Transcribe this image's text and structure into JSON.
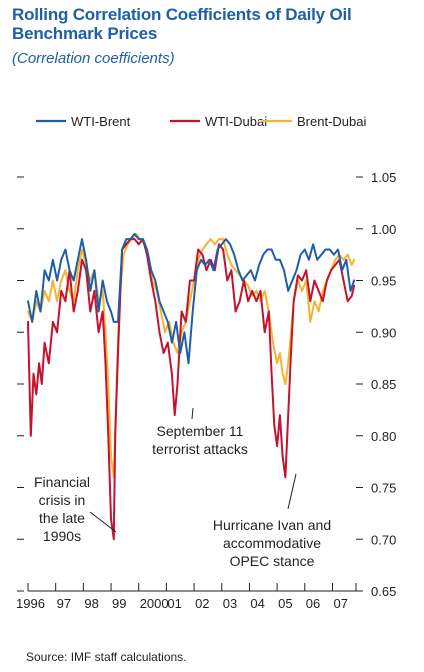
{
  "title": "Rolling Correlation Coefficients of Daily Oil Benchmark Prices",
  "subtitle": "(Correlation coefficients)",
  "source": "Source: IMF staff calculations.",
  "colors": {
    "wti_brent": "#1f5fa8",
    "wti_dubai": "#c4122f",
    "brent_dubai": "#f5b335",
    "title": "#1f5fa8"
  },
  "chart_data": {
    "type": "line",
    "x_tick_labels": [
      "1996",
      "97",
      "98",
      "99",
      "2000",
      "01",
      "02",
      "03",
      "04",
      "05",
      "06",
      "07"
    ],
    "x_ticks": [
      1996,
      1997,
      1998,
      1999,
      2000,
      2001,
      2002,
      2003,
      2004,
      2005,
      2006,
      2007
    ],
    "xlim": [
      1996,
      2007.85
    ],
    "ylim": [
      0.65,
      1.05
    ],
    "y_ticks": [
      0.65,
      0.7,
      0.75,
      0.8,
      0.85,
      0.9,
      0.95,
      1.0,
      1.05
    ],
    "y_tick_labels": [
      "0.65",
      "0.70",
      "0.75",
      "0.80",
      "0.85",
      "0.90",
      "0.95",
      "1.00",
      "1.05"
    ],
    "y_axis_side": "right",
    "legend_position": "top",
    "series": [
      {
        "name": "WTI-Brent",
        "color": "#1f5fa8",
        "x": [
          1996.0,
          1996.15,
          1996.3,
          1996.45,
          1996.6,
          1996.75,
          1996.9,
          1997.05,
          1997.2,
          1997.35,
          1997.5,
          1997.65,
          1997.8,
          1997.95,
          1998.1,
          1998.25,
          1998.4,
          1998.55,
          1998.7,
          1998.85,
          1999.0,
          1999.1,
          1999.25,
          1999.4,
          1999.55,
          1999.7,
          1999.85,
          2000.0,
          2000.15,
          2000.3,
          2000.45,
          2000.6,
          2000.75,
          2000.9,
          2001.05,
          2001.2,
          2001.35,
          2001.5,
          2001.65,
          2001.8,
          2001.95,
          2002.1,
          2002.25,
          2002.4,
          2002.55,
          2002.7,
          2002.85,
          2003.0,
          2003.15,
          2003.3,
          2003.45,
          2003.6,
          2003.75,
          2003.9,
          2004.05,
          2004.2,
          2004.35,
          2004.5,
          2004.65,
          2004.8,
          2004.95,
          2005.1,
          2005.25,
          2005.4,
          2005.55,
          2005.7,
          2005.85,
          2006.0,
          2006.15,
          2006.3,
          2006.45,
          2006.6,
          2006.75,
          2006.9,
          2007.05,
          2007.2,
          2007.35,
          2007.5,
          2007.65,
          2007.78
        ],
        "y": [
          0.93,
          0.91,
          0.94,
          0.92,
          0.96,
          0.95,
          0.97,
          0.95,
          0.97,
          0.98,
          0.96,
          0.95,
          0.97,
          0.99,
          0.97,
          0.94,
          0.96,
          0.92,
          0.95,
          0.93,
          0.92,
          0.91,
          0.91,
          0.98,
          0.99,
          0.99,
          0.995,
          0.99,
          0.99,
          0.98,
          0.96,
          0.95,
          0.93,
          0.92,
          0.91,
          0.89,
          0.91,
          0.88,
          0.9,
          0.87,
          0.92,
          0.96,
          0.97,
          0.965,
          0.97,
          0.96,
          0.98,
          0.985,
          0.99,
          0.985,
          0.975,
          0.96,
          0.95,
          0.955,
          0.96,
          0.95,
          0.965,
          0.975,
          0.98,
          0.98,
          0.97,
          0.97,
          0.96,
          0.94,
          0.95,
          0.96,
          0.975,
          0.98,
          0.97,
          0.985,
          0.97,
          0.975,
          0.98,
          0.98,
          0.975,
          0.98,
          0.96,
          0.97,
          0.94,
          0.95
        ]
      },
      {
        "name": "WTI-Dubai",
        "color": "#c4122f",
        "x": [
          1996.0,
          1996.1,
          1996.2,
          1996.3,
          1996.4,
          1996.5,
          1996.6,
          1996.75,
          1996.9,
          1997.05,
          1997.2,
          1997.35,
          1997.5,
          1997.65,
          1997.8,
          1997.95,
          1998.1,
          1998.25,
          1998.4,
          1998.55,
          1998.7,
          1998.8,
          1998.9,
          1999.0,
          1999.1,
          1999.15,
          1999.25,
          1999.4,
          1999.55,
          1999.7,
          1999.85,
          2000.0,
          2000.15,
          2000.3,
          2000.45,
          2000.6,
          2000.75,
          2000.9,
          2001.05,
          2001.2,
          2001.3,
          2001.4,
          2001.55,
          2001.7,
          2001.85,
          2002.0,
          2002.15,
          2002.3,
          2002.45,
          2002.6,
          2002.75,
          2002.9,
          2003.05,
          2003.2,
          2003.35,
          2003.5,
          2003.65,
          2003.8,
          2003.95,
          2004.1,
          2004.25,
          2004.4,
          2004.55,
          2004.7,
          2004.8,
          2004.9,
          2005.0,
          2005.1,
          2005.2,
          2005.3,
          2005.4,
          2005.5,
          2005.6,
          2005.75,
          2005.9,
          2006.05,
          2006.2,
          2006.35,
          2006.5,
          2006.65,
          2006.8,
          2006.95,
          2007.1,
          2007.25,
          2007.4,
          2007.55,
          2007.7,
          2007.78
        ],
        "y": [
          0.91,
          0.8,
          0.86,
          0.84,
          0.87,
          0.85,
          0.89,
          0.87,
          0.91,
          0.9,
          0.94,
          0.93,
          0.96,
          0.92,
          0.94,
          0.97,
          0.96,
          0.92,
          0.94,
          0.9,
          0.92,
          0.87,
          0.8,
          0.72,
          0.7,
          0.8,
          0.88,
          0.98,
          0.985,
          0.99,
          0.99,
          0.985,
          0.99,
          0.975,
          0.95,
          0.93,
          0.9,
          0.88,
          0.89,
          0.86,
          0.82,
          0.85,
          0.92,
          0.91,
          0.95,
          0.95,
          0.98,
          0.975,
          0.96,
          0.97,
          0.96,
          0.985,
          0.98,
          0.95,
          0.96,
          0.92,
          0.93,
          0.95,
          0.93,
          0.94,
          0.93,
          0.94,
          0.9,
          0.92,
          0.86,
          0.81,
          0.79,
          0.82,
          0.78,
          0.76,
          0.82,
          0.88,
          0.93,
          0.955,
          0.95,
          0.96,
          0.93,
          0.95,
          0.94,
          0.93,
          0.95,
          0.96,
          0.965,
          0.97,
          0.95,
          0.93,
          0.935,
          0.945
        ]
      },
      {
        "name": "Brent-Dubai",
        "color": "#f5b335",
        "x": [
          1996.0,
          1996.15,
          1996.3,
          1996.45,
          1996.6,
          1996.75,
          1996.9,
          1997.05,
          1997.2,
          1997.35,
          1997.5,
          1997.65,
          1997.8,
          1997.95,
          1998.1,
          1998.25,
          1998.4,
          1998.55,
          1998.7,
          1998.8,
          1998.9,
          1999.0,
          1999.1,
          1999.2,
          1999.3,
          1999.45,
          1999.6,
          1999.75,
          1999.9,
          2000.05,
          2000.2,
          2000.35,
          2000.5,
          2000.65,
          2000.8,
          2000.95,
          2001.1,
          2001.25,
          2001.4,
          2001.55,
          2001.7,
          2001.85,
          2002.0,
          2002.15,
          2002.3,
          2002.45,
          2002.6,
          2002.75,
          2002.9,
          2003.05,
          2003.2,
          2003.35,
          2003.5,
          2003.65,
          2003.8,
          2003.95,
          2004.1,
          2004.25,
          2004.4,
          2004.55,
          2004.7,
          2004.85,
          2005.0,
          2005.1,
          2005.2,
          2005.3,
          2005.4,
          2005.5,
          2005.6,
          2005.75,
          2005.9,
          2006.05,
          2006.2,
          2006.35,
          2006.5,
          2006.65,
          2006.8,
          2006.95,
          2007.1,
          2007.25,
          2007.4,
          2007.55,
          2007.7,
          2007.78
        ],
        "y": [
          0.92,
          0.91,
          0.93,
          0.92,
          0.94,
          0.93,
          0.95,
          0.93,
          0.95,
          0.96,
          0.94,
          0.93,
          0.96,
          0.98,
          0.965,
          0.95,
          0.96,
          0.93,
          0.94,
          0.9,
          0.85,
          0.78,
          0.76,
          0.85,
          0.93,
          0.975,
          0.985,
          0.99,
          0.995,
          0.99,
          0.985,
          0.975,
          0.95,
          0.94,
          0.92,
          0.9,
          0.91,
          0.89,
          0.88,
          0.9,
          0.91,
          0.93,
          0.95,
          0.97,
          0.98,
          0.985,
          0.99,
          0.985,
          0.99,
          0.99,
          0.975,
          0.965,
          0.96,
          0.955,
          0.95,
          0.945,
          0.935,
          0.94,
          0.93,
          0.94,
          0.92,
          0.89,
          0.87,
          0.88,
          0.86,
          0.85,
          0.87,
          0.9,
          0.93,
          0.95,
          0.94,
          0.95,
          0.91,
          0.93,
          0.92,
          0.94,
          0.95,
          0.96,
          0.97,
          0.975,
          0.97,
          0.975,
          0.965,
          0.97
        ]
      }
    ],
    "annotations": [
      {
        "id": "financial-crisis",
        "lines": [
          "Financial",
          "crisis in",
          "the late",
          "1990s"
        ]
      },
      {
        "id": "september-11",
        "lines": [
          "September 11",
          "terrorist attacks"
        ]
      },
      {
        "id": "hurricane-ivan",
        "lines": [
          "Hurricane Ivan and",
          "accommodative",
          "OPEC stance"
        ]
      }
    ]
  }
}
